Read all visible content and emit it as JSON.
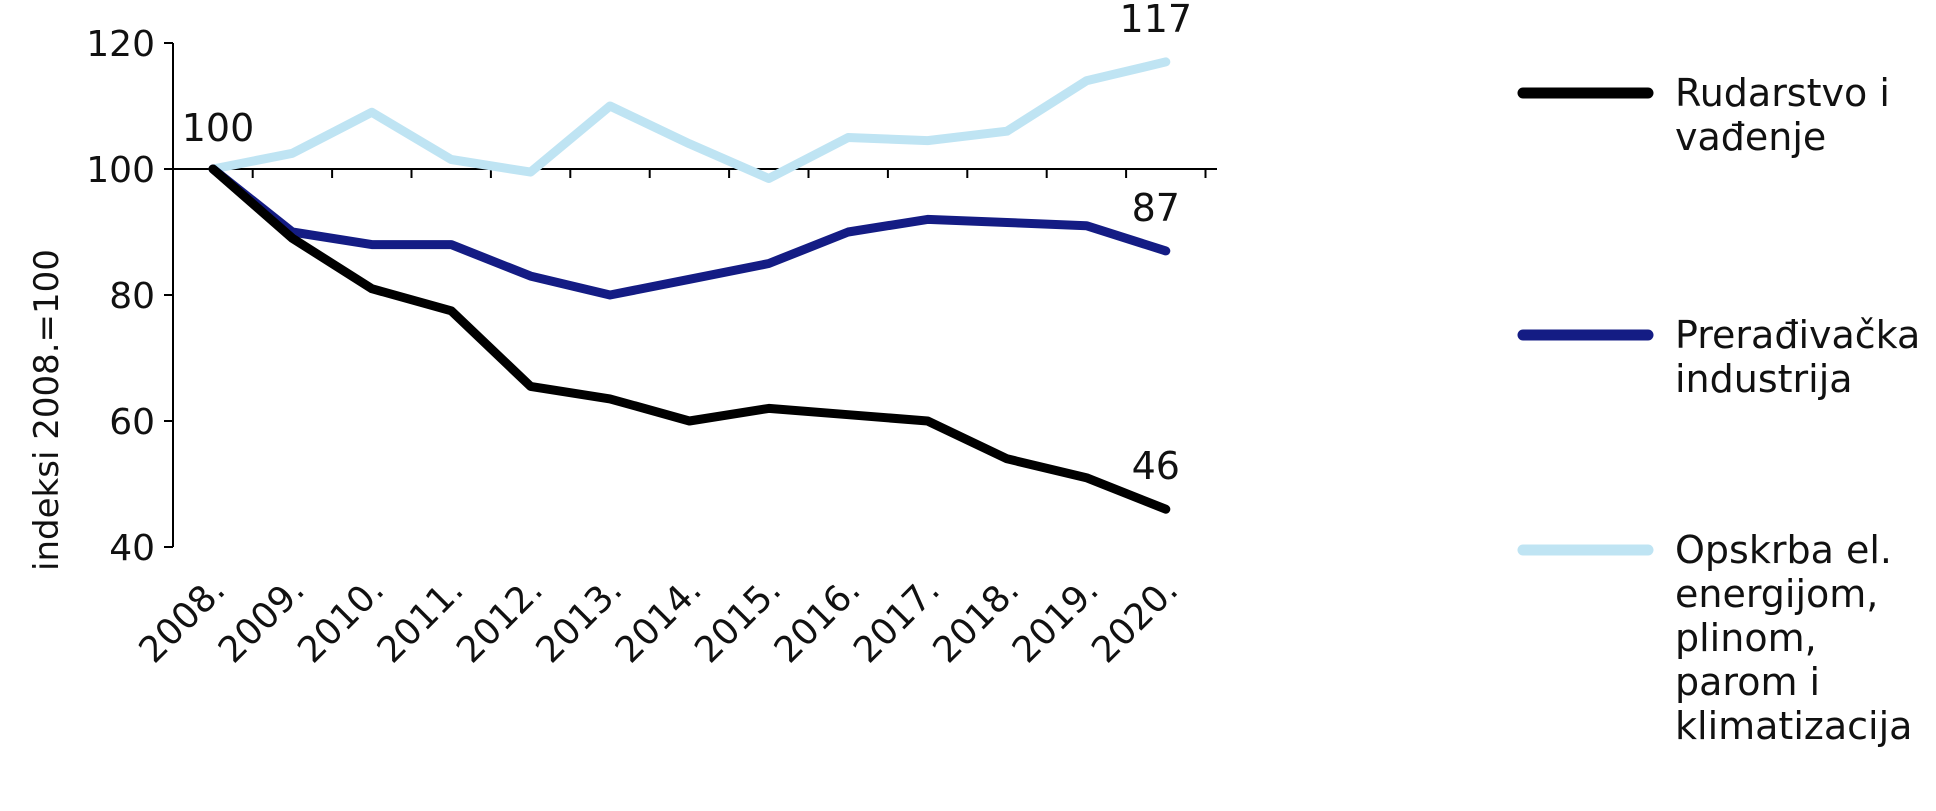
{
  "chart_data": {
    "type": "line",
    "title": "",
    "xlabel": "",
    "ylabel": "indeksi 2008.=100",
    "ylim": [
      40,
      120
    ],
    "yticks": [
      40,
      60,
      80,
      100,
      120
    ],
    "grid": false,
    "baseline": 100,
    "legend_position": "right",
    "categories": [
      "2008.",
      "2009.",
      "2010.",
      "2011.",
      "2012.",
      "2013.",
      "2014.",
      "2015.",
      "2016.",
      "2017.",
      "2018.",
      "2019.",
      "2020."
    ],
    "series": [
      {
        "name": "Rudarstvo i vađenje",
        "legend_lines": [
          "Rudarstvo i",
          "vađenje"
        ],
        "color": "#000000",
        "values": [
          100,
          89,
          81,
          77.5,
          65.5,
          63.5,
          60,
          62,
          61,
          60,
          54,
          51,
          46
        ],
        "end_label": "46"
      },
      {
        "name": "Prerađivačka industrija",
        "legend_lines": [
          "Prerađivačka",
          "industrija"
        ],
        "color": "#141c84",
        "values": [
          100,
          90,
          88,
          88,
          83,
          80,
          82.5,
          85,
          90,
          92,
          91.5,
          91,
          87
        ],
        "end_label": "87"
      },
      {
        "name": "Opskrba el. energijom, plinom, parom i klimatizacija",
        "legend_lines": [
          "Opskrba el.",
          "energijom,",
          "plinom,",
          "parom i",
          "klimatizacija"
        ],
        "color": "#bfe4f3",
        "values": [
          100,
          102.5,
          109,
          101.5,
          99.5,
          110,
          104,
          98.5,
          105,
          104.5,
          106,
          114,
          117
        ],
        "end_label": "117"
      }
    ],
    "annotations": [
      {
        "text": "100",
        "category": "2008.",
        "value": 100
      }
    ]
  }
}
